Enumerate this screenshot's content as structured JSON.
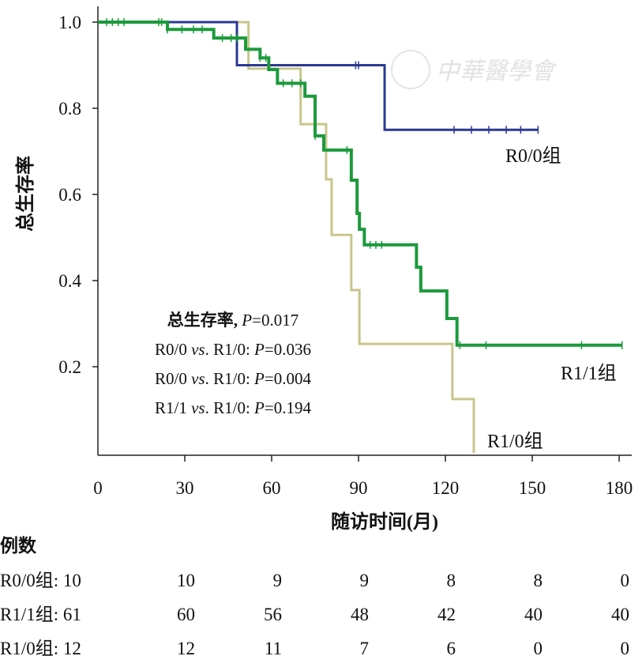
{
  "chart_data": {
    "type": "line",
    "subtype": "kaplan-meier",
    "xlabel": "随访时间(月)",
    "ylabel": "总生存率",
    "xlim": [
      0,
      180
    ],
    "ylim": [
      0,
      1.0
    ],
    "xticks": [
      "0",
      "30",
      "60",
      "90",
      "120",
      "150",
      "180"
    ],
    "xtick_values": [
      0,
      30,
      60,
      90,
      120,
      150,
      180
    ],
    "yticks": [
      "1.0",
      "0.8",
      "0.6",
      "0.4",
      "0.2"
    ],
    "ytick_values": [
      1.0,
      0.8,
      0.6,
      0.4,
      0.2
    ],
    "series": [
      {
        "name": "R0/0组",
        "color": "#2b3990",
        "steps": [
          [
            48,
            0.9
          ],
          [
            99,
            0.75
          ]
        ],
        "end": 152,
        "censored": [
          89,
          90,
          123,
          129,
          135,
          141,
          146,
          152
        ]
      },
      {
        "name": "R1/1组",
        "color": "#1c9a3c",
        "steps": [
          [
            24,
            0.983
          ],
          [
            40,
            0.963
          ],
          [
            51,
            0.937
          ],
          [
            56,
            0.917
          ],
          [
            59,
            0.89
          ],
          [
            62,
            0.858
          ],
          [
            71.5,
            0.828
          ],
          [
            75,
            0.736
          ],
          [
            78,
            0.703
          ],
          [
            87.5,
            0.633
          ],
          [
            89.5,
            0.556
          ],
          [
            90.3,
            0.519
          ],
          [
            92,
            0.483
          ],
          [
            110,
            0.431
          ],
          [
            111.5,
            0.376
          ],
          [
            120.5,
            0.312
          ],
          [
            124,
            0.25
          ]
        ],
        "end": 181,
        "censored": [
          3,
          5,
          7,
          9,
          21,
          22,
          24,
          29,
          33,
          36,
          43,
          46,
          48,
          56,
          58,
          64,
          67,
          70,
          75,
          86,
          94,
          96,
          98,
          125,
          134,
          167,
          181
        ]
      },
      {
        "name": "R1/0组",
        "color": "#c9c58c",
        "steps": [
          [
            52,
            0.892
          ],
          [
            70,
            0.763
          ],
          [
            78.8,
            0.635
          ],
          [
            80.7,
            0.506
          ],
          [
            87.5,
            0.378
          ],
          [
            90.3,
            0.253
          ],
          [
            122.4,
            0.125
          ],
          [
            129.8,
            0
          ]
        ],
        "end": 129.8,
        "censored": []
      }
    ],
    "annotations": {
      "stats_title_prefix": "总生存率, ",
      "stats_title_p": "P",
      "stats_title_value": "=0.017",
      "comparisons": [
        {
          "a": "R0/0 ",
          "vs": "vs",
          "b": ". R1/0: ",
          "p": "P",
          "value": "=0.036"
        },
        {
          "a": "R0/0 ",
          "vs": "vs",
          "b": ". R1/0: ",
          "p": "P",
          "value": "=0.004"
        },
        {
          "a": "R1/1 ",
          "vs": "vs",
          "b": ". R1/0: ",
          "p": "P",
          "value": "=0.194"
        }
      ]
    },
    "risk_table": {
      "title": "例数",
      "rows": [
        {
          "label": "R0/0组: 10",
          "values": [
            "10",
            "9",
            "9",
            "8",
            "8",
            "0"
          ]
        },
        {
          "label": "R1/1组: 61",
          "values": [
            "60",
            "56",
            "48",
            "42",
            "40",
            "40"
          ]
        },
        {
          "label": "R1/0组: 12",
          "values": [
            "12",
            "11",
            "7",
            "6",
            "0",
            "0"
          ]
        }
      ]
    },
    "watermark": "中華醫學會"
  }
}
